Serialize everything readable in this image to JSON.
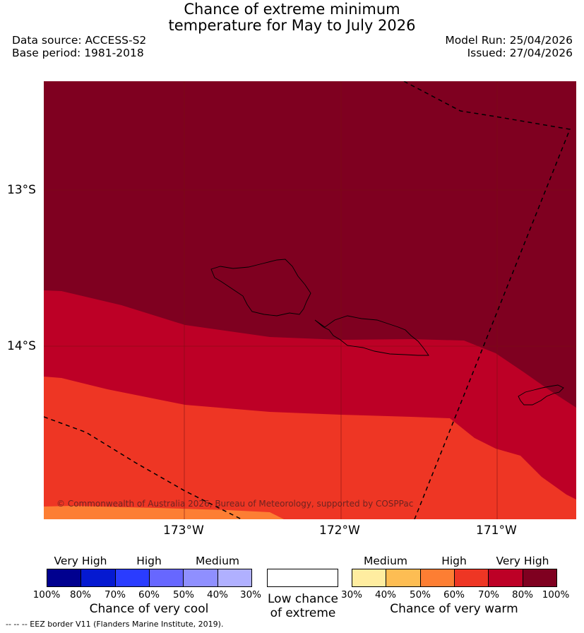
{
  "title_line1": "Chance of extreme minimum",
  "title_line2": "temperature for May to July 2026",
  "data_source": "Data source: ACCESS-S2",
  "base_period": "Base period: 1981-2018",
  "model_run": "Model Run: 25/04/2026",
  "issued": "Issued: 27/04/2026",
  "map": {
    "lat_labels": [
      "13°S",
      "14°S"
    ],
    "lon_labels": [
      "173°W",
      "172°W",
      "171°W"
    ],
    "copyright": "© Commonwealth of Australia 2026, Bureau of Meteorology, supported by COSPPac",
    "zone_colors": {
      "very_high_warm_90_100": "#7f0020",
      "very_high_warm_80_90": "#bd0026",
      "high_warm_70_80": "#ee3624",
      "high_warm_60_70": "#fd7e33"
    }
  },
  "legend_cool": {
    "categories": [
      "Very High",
      "High",
      "Medium"
    ],
    "ticks": [
      "100%",
      "80%",
      "70%",
      "60%",
      "50%",
      "40%",
      "30%"
    ],
    "colors": [
      "#00008f",
      "#0519d1",
      "#2a3cff",
      "#6767ff",
      "#8f8fff",
      "#b0b0ff"
    ],
    "caption": "Chance of very cool"
  },
  "legend_low": {
    "caption_line1": "Low chance",
    "caption_line2": "of extreme",
    "color": "#ffffff"
  },
  "legend_warm": {
    "categories": [
      "Medium",
      "High",
      "Very High"
    ],
    "ticks": [
      "30%",
      "40%",
      "50%",
      "60%",
      "70%",
      "80%",
      "100%"
    ],
    "colors": [
      "#ffeda0",
      "#fdbd53",
      "#fd7e33",
      "#ee3624",
      "#bd0026",
      "#7f0020"
    ],
    "caption": "Chance of very warm"
  },
  "footnote": "-- -- -- EEZ border V11 (Flanders Marine Institute, 2019)."
}
